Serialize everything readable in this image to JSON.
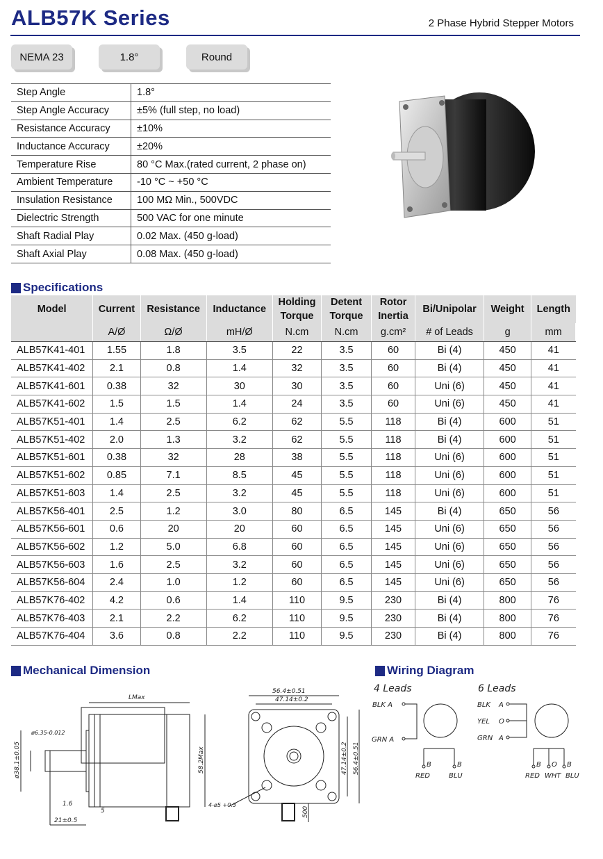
{
  "header": {
    "title": "ALB57K  Series",
    "subtitle": "2 Phase Hybrid Stepper Motors",
    "tags": [
      "NEMA 23",
      "1.8°",
      "Round"
    ]
  },
  "properties": [
    [
      "Step Angle",
      "1.8°"
    ],
    [
      "Step Angle Accuracy",
      "±5% (full step, no load)"
    ],
    [
      "Resistance Accuracy",
      "±10%"
    ],
    [
      "Inductance Accuracy",
      "±20%"
    ],
    [
      "Temperature Rise",
      "80 °C Max.(rated current, 2 phase on)"
    ],
    [
      "Ambient Temperature",
      "-10 °C ~ +50 °C"
    ],
    [
      "Insulation Resistance",
      "100 MΩ Min., 500VDC"
    ],
    [
      "Dielectric Strength",
      "500 VAC for one minute"
    ],
    [
      "Shaft Radial Play",
      "0.02 Max. (450 g-load)"
    ],
    [
      "Shaft Axial Play",
      "0.08 Max. (450 g-load)"
    ]
  ],
  "specifications": {
    "heading": "Specifications",
    "columns": [
      "Model",
      "Current",
      "Resistance",
      "Inductance",
      "Holding Torque",
      "Detent Torque",
      "Rotor Inertia",
      "Bi/Unipolar",
      "Weight",
      "Length"
    ],
    "units": [
      "",
      "A/Ø",
      "Ω/Ø",
      "mH/Ø",
      "N.cm",
      "N.cm",
      "g.cm²",
      "# of Leads",
      "g",
      "mm"
    ],
    "rows": [
      [
        "ALB57K41-401",
        "1.55",
        "1.8",
        "3.5",
        "22",
        "3.5",
        "60",
        "Bi (4)",
        "450",
        "41"
      ],
      [
        "ALB57K41-402",
        "2.1",
        "0.8",
        "1.4",
        "32",
        "3.5",
        "60",
        "Bi (4)",
        "450",
        "41"
      ],
      [
        "ALB57K41-601",
        "0.38",
        "32",
        "30",
        "30",
        "3.5",
        "60",
        "Uni (6)",
        "450",
        "41"
      ],
      [
        "ALB57K41-602",
        "1.5",
        "1.5",
        "1.4",
        "24",
        "3.5",
        "60",
        "Uni (6)",
        "450",
        "41"
      ],
      [
        "ALB57K51-401",
        "1.4",
        "2.5",
        "6.2",
        "62",
        "5.5",
        "118",
        "Bi (4)",
        "600",
        "51"
      ],
      [
        "ALB57K51-402",
        "2.0",
        "1.3",
        "3.2",
        "62",
        "5.5",
        "118",
        "Bi (4)",
        "600",
        "51"
      ],
      [
        "ALB57K51-601",
        "0.38",
        "32",
        "28",
        "38",
        "5.5",
        "118",
        "Uni (6)",
        "600",
        "51"
      ],
      [
        "ALB57K51-602",
        "0.85",
        "7.1",
        "8.5",
        "45",
        "5.5",
        "118",
        "Uni (6)",
        "600",
        "51"
      ],
      [
        "ALB57K51-603",
        "1.4",
        "2.5",
        "3.2",
        "45",
        "5.5",
        "118",
        "Uni (6)",
        "600",
        "51"
      ],
      [
        "ALB57K56-401",
        "2.5",
        "1.2",
        "3.0",
        "80",
        "6.5",
        "145",
        "Bi (4)",
        "650",
        "56"
      ],
      [
        "ALB57K56-601",
        "0.6",
        "20",
        "20",
        "60",
        "6.5",
        "145",
        "Uni (6)",
        "650",
        "56"
      ],
      [
        "ALB57K56-602",
        "1.2",
        "5.0",
        "6.8",
        "60",
        "6.5",
        "145",
        "Uni (6)",
        "650",
        "56"
      ],
      [
        "ALB57K56-603",
        "1.6",
        "2.5",
        "3.2",
        "60",
        "6.5",
        "145",
        "Uni (6)",
        "650",
        "56"
      ],
      [
        "ALB57K56-604",
        "2.4",
        "1.0",
        "1.2",
        "60",
        "6.5",
        "145",
        "Uni (6)",
        "650",
        "56"
      ],
      [
        "ALB57K76-402",
        "4.2",
        "0.6",
        "1.4",
        "110",
        "9.5",
        "230",
        "Bi (4)",
        "800",
        "76"
      ],
      [
        "ALB57K76-403",
        "2.1",
        "2.2",
        "6.2",
        "110",
        "9.5",
        "230",
        "Bi (4)",
        "800",
        "76"
      ],
      [
        "ALB57K76-404",
        "3.6",
        "0.8",
        "2.2",
        "110",
        "9.5",
        "230",
        "Bi (4)",
        "800",
        "76"
      ]
    ]
  },
  "mechanical": {
    "heading": "Mechanical Dimension",
    "lmax": "LMax",
    "shaft_dia": "ø6.35-0.012",
    "boss": "ø38.1±0.05",
    "body_h": "58.2Max",
    "d16": "1.6",
    "d5": "5",
    "d21": "21±0.5",
    "w564": "56.4±0.51",
    "w4714": "47.14±0.2",
    "holes": "4-ø5 +0.3",
    "lead": "500"
  },
  "wiring": {
    "heading": "Wiring Diagram",
    "four": {
      "title": "4 Leads",
      "a": "BLK A",
      "abar": "GRN A",
      "b": "B",
      "bbar": "B",
      "red": "RED",
      "blu": "BLU"
    },
    "six": {
      "title": "6 Leads",
      "blk": "BLK",
      "yel": "YEL",
      "grn": "GRN",
      "a": "A",
      "o": "O",
      "abar": "A",
      "b": "B",
      "obar": "O",
      "bbar": "B",
      "red": "RED",
      "wht": "WHT",
      "blu": "BLU"
    }
  },
  "colors": {
    "brand": "#1d2a84",
    "header_gray": "#dcdcdc"
  }
}
